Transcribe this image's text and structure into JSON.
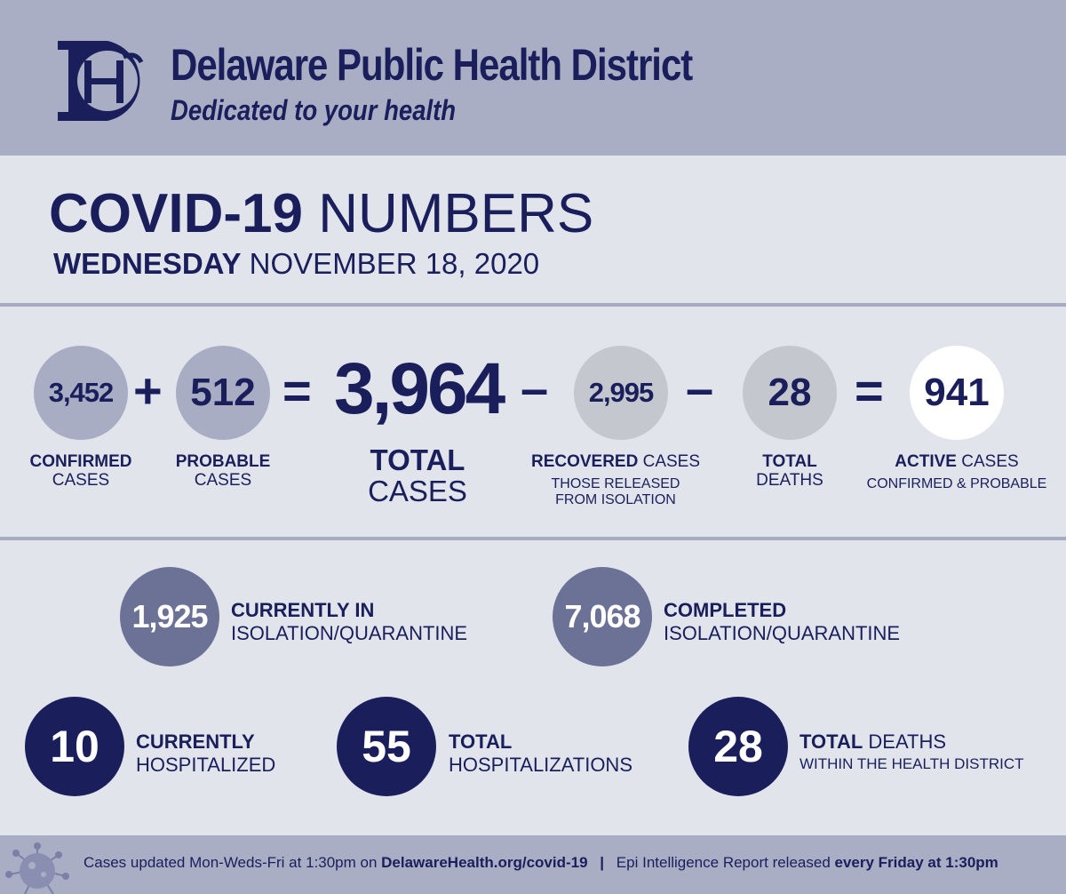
{
  "header": {
    "logo_letters": "DH",
    "org_name": "Delaware Public Health District",
    "tagline": "Dedicated to your health"
  },
  "title": {
    "bold": "COVID-19",
    "rest": "NUMBERS",
    "day": "WEDNESDAY",
    "date": "NOVEMBER 18, 2020"
  },
  "equation": {
    "confirmed": {
      "value": "3,452",
      "label_bold": "CONFIRMED",
      "label": "CASES"
    },
    "plus": "+",
    "probable": {
      "value": "512",
      "label_bold": "PROBABLE",
      "label": "CASES"
    },
    "equals1": "=",
    "total": {
      "value": "3,964",
      "label_bold": "TOTAL",
      "label": "CASES"
    },
    "minus1": "–",
    "recovered": {
      "value": "2,995",
      "label_bold": "RECOVERED",
      "label": "CASES",
      "sub1": "THOSE RELEASED",
      "sub2": "FROM ISOLATION"
    },
    "minus2": "–",
    "deaths": {
      "value": "28",
      "label_bold": "TOTAL",
      "label": "DEATHS"
    },
    "equals2": "=",
    "active": {
      "value": "941",
      "label_bold": "ACTIVE",
      "label": "CASES",
      "sub": "CONFIRMED & PROBABLE"
    }
  },
  "stats": {
    "isolation_current": {
      "value": "1,925",
      "line1": "CURRENTLY IN",
      "line2": "ISOLATION/QUARANTINE"
    },
    "isolation_completed": {
      "value": "7,068",
      "line1": "COMPLETED",
      "line2": "ISOLATION/QUARANTINE"
    },
    "hospitalized_current": {
      "value": "10",
      "line1": "CURRENTLY",
      "line2": "HOSPITALIZED"
    },
    "hospitalizations_total": {
      "value": "55",
      "line1": "TOTAL",
      "line2": "HOSPITALIZATIONS"
    },
    "deaths_district": {
      "value": "28",
      "line1_bold": "TOTAL",
      "line1_rest": "DEATHS",
      "line2": "WITHIN THE HEALTH DISTRICT"
    }
  },
  "footer": {
    "part1": "Cases updated Mon-Weds-Fri at 1:30pm on",
    "link": "DelawareHealth.org/covid-19",
    "separator": "|",
    "part2": "Epi Intelligence Report released",
    "part3": "every Friday at 1:30pm"
  },
  "colors": {
    "navy": "#1a1f5c",
    "header_bg": "#a9aec4",
    "page_bg": "#e2e4ec",
    "light_circle": "#a8adc4",
    "gray_circle": "#c5c7cf",
    "mid_circle": "#6c7296"
  },
  "icons": [
    "dh-logo",
    "virus-icon"
  ]
}
